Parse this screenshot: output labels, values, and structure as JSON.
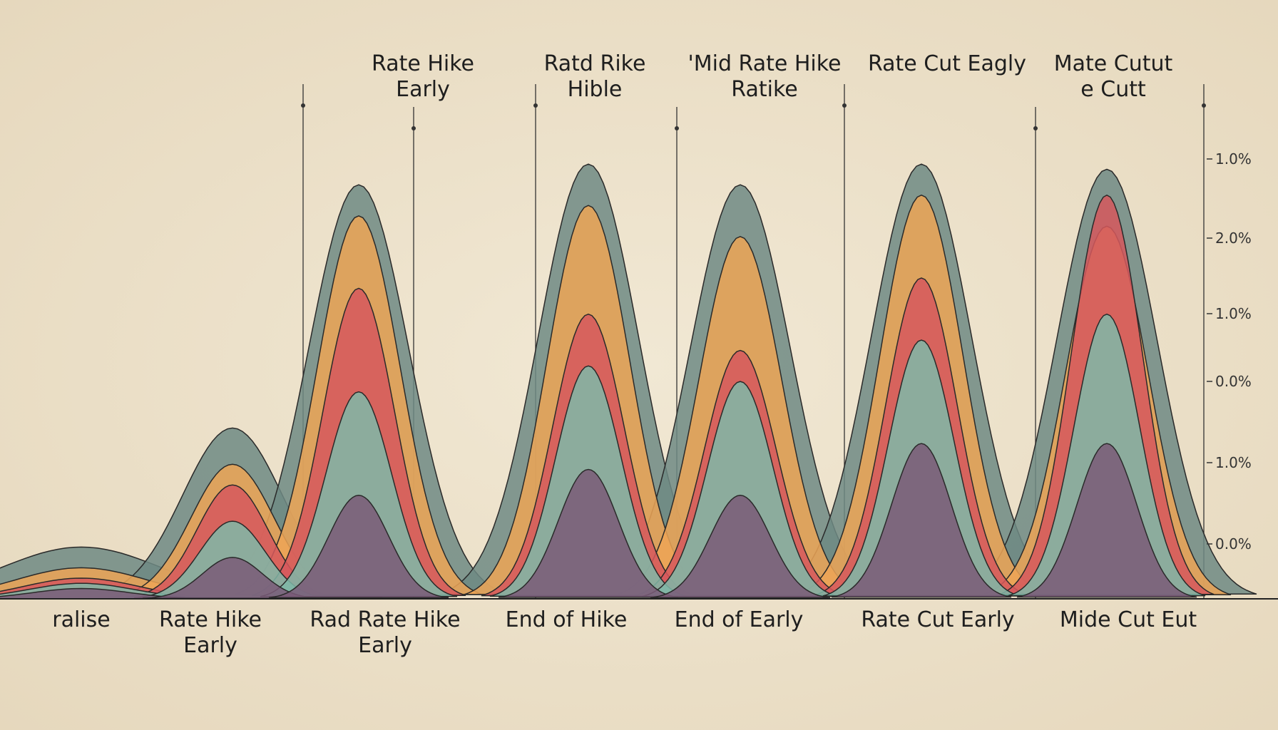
{
  "chart_data": {
    "type": "ridge",
    "categories": [
      "ralise",
      "Rate Hike\nEarly",
      "Rad Rate Hike\nEarly",
      "End of Hike",
      "End of   Early",
      "Rate Cut Early",
      "Mide Cut Eut"
    ],
    "top_labels": [
      "Rate Hike\nEarly",
      "Ratd Rike\nHible",
      "'Mid Rate Hike\nRatike",
      "Rate Cut Eagly",
      "Mate Cutut\ne Cutt"
    ],
    "axis_labels": [
      "1.0%",
      "2.0%",
      "1.0%",
      "0.0%",
      "1.0%",
      "0.0%"
    ],
    "ylim": [
      0,
      100
    ],
    "series": [
      {
        "color": "#6f8a84",
        "values": [
          10,
          33,
          80,
          84,
          80,
          84,
          83
        ]
      },
      {
        "color": "#eda456",
        "values": [
          6,
          26,
          74,
          76,
          70,
          78,
          72
        ]
      },
      {
        "color": "#d6585d",
        "values": [
          4,
          22,
          60,
          55,
          48,
          62,
          78
        ]
      },
      {
        "color": "#7fb9a8",
        "values": [
          3,
          15,
          40,
          45,
          42,
          50,
          55
        ]
      },
      {
        "color": "#7a5a78",
        "values": [
          2,
          8,
          20,
          25,
          20,
          30,
          30
        ]
      }
    ]
  }
}
